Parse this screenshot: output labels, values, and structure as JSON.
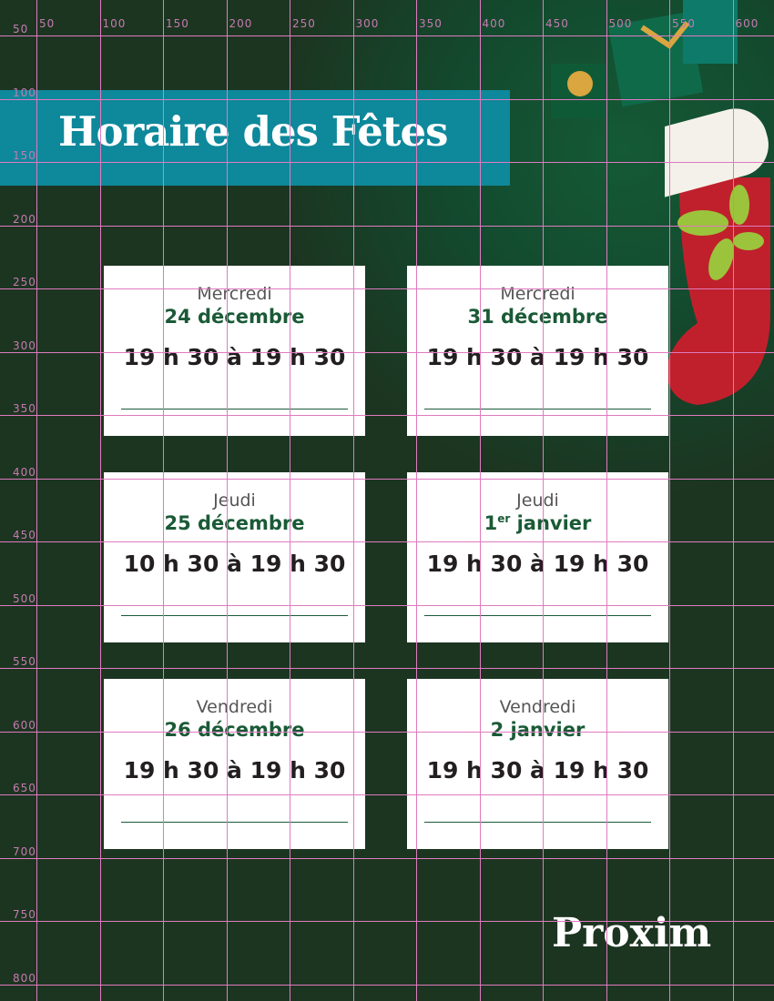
{
  "title": "Horaire des Fêtes",
  "cards": [
    {
      "day": "Mercredi",
      "date": "24 décembre",
      "hours": "19 h 30 à 19 h 30"
    },
    {
      "day": "Mercredi",
      "date": "31 décembre",
      "hours": "19 h 30 à 19 h 30"
    },
    {
      "day": "Jeudi",
      "date": "25 décembre",
      "hours": "10 h 30 à 19 h 30"
    },
    {
      "day": "Jeudi",
      "date_num": "1",
      "date_sup": "er",
      "date_rest": " janvier",
      "hours": "19 h 30 à 19 h 30"
    },
    {
      "day": "Vendredi",
      "date": "26 décembre",
      "hours": "19 h 30 à 19 h 30"
    },
    {
      "day": "Vendredi",
      "date": "2 janvier",
      "hours": "19 h 30 à 19 h 30"
    }
  ],
  "logo": "Proxim",
  "grid": {
    "x_labels": [
      "50",
      "100",
      "150",
      "200",
      "250",
      "300",
      "350",
      "400",
      "450",
      "500",
      "550",
      "600"
    ],
    "y_labels": [
      "50",
      "100",
      "150",
      "200",
      "250",
      "300",
      "350",
      "400",
      "450",
      "500",
      "550",
      "600",
      "650",
      "700",
      "750",
      "800"
    ]
  },
  "colors": {
    "background": "#1c3521",
    "banner": "#0e889b",
    "date": "#1a5a36",
    "grid": "#e07ac0"
  }
}
